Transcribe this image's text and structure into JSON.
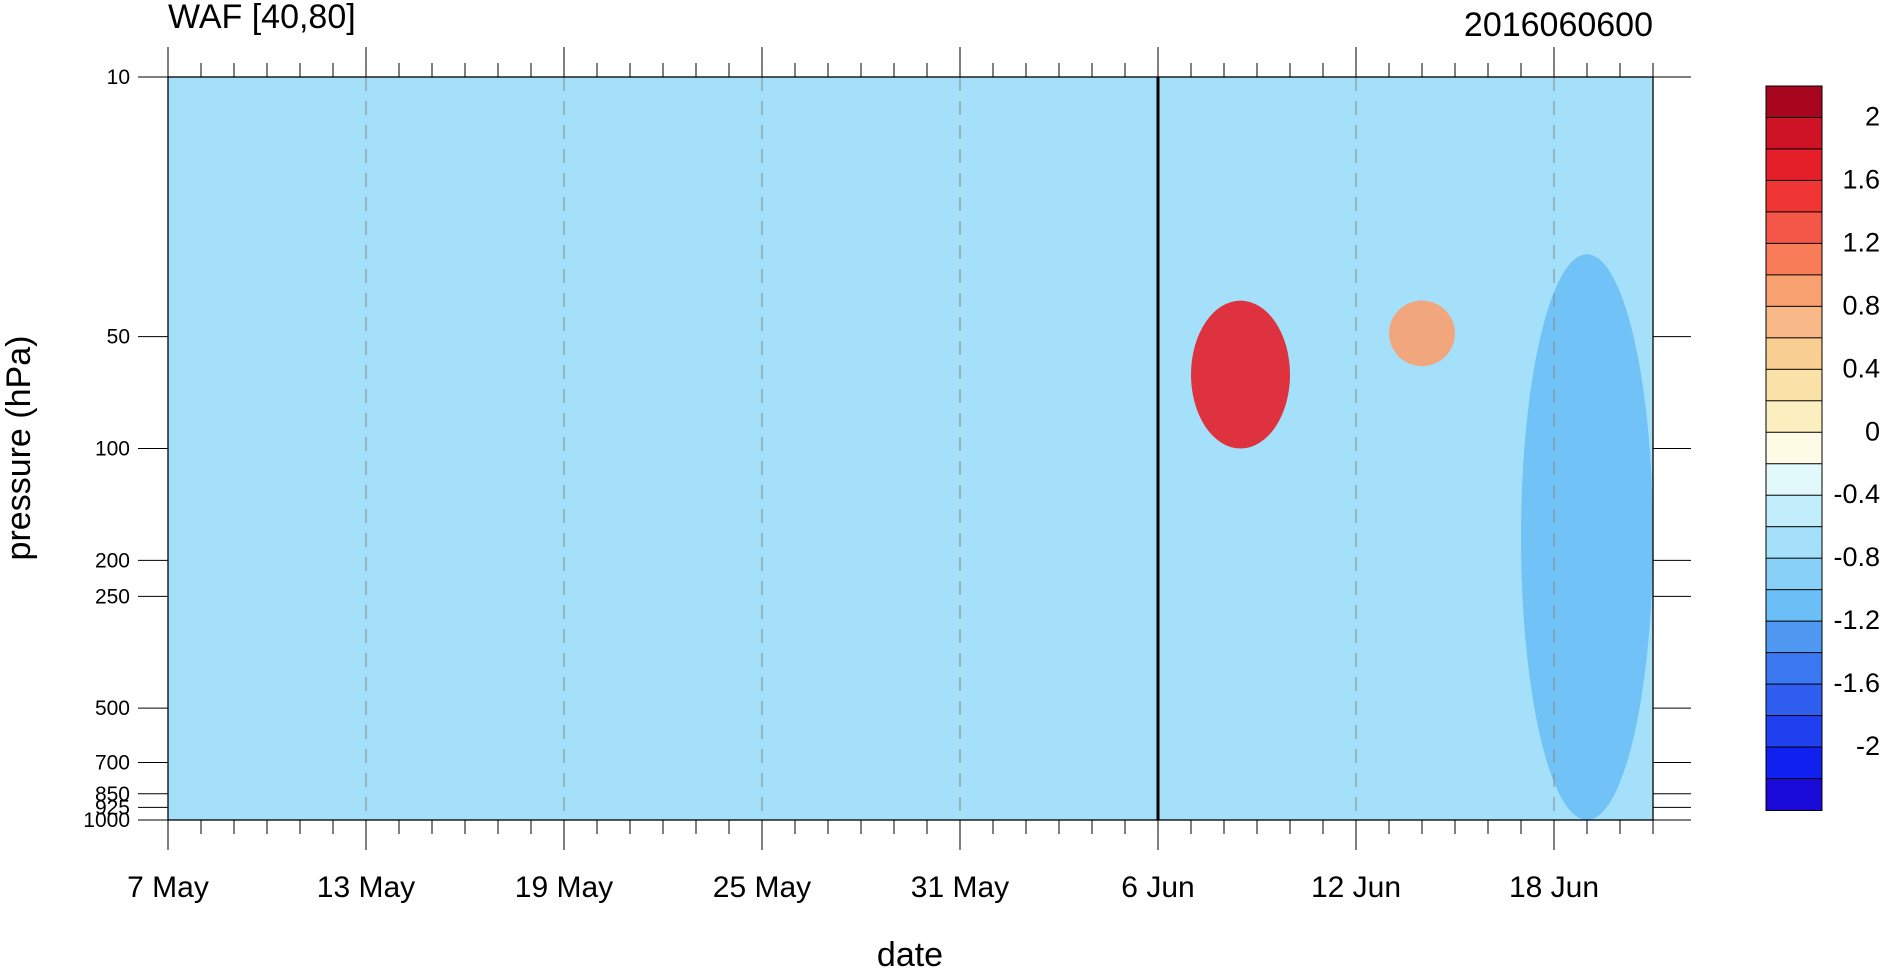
{
  "chart_data": {
    "type": "heatmap",
    "title_left": "WAF [40,80]",
    "title_right": "2016060600",
    "xlabel": "date",
    "ylabel": "pressure (hPa)",
    "x_ticklabels": [
      {
        "date": "2016-05-07",
        "label": "7 May"
      },
      {
        "date": "2016-05-13",
        "label": "13 May"
      },
      {
        "date": "2016-05-19",
        "label": "19 May"
      },
      {
        "date": "2016-05-25",
        "label": "25 May"
      },
      {
        "date": "2016-05-31",
        "label": "31 May"
      },
      {
        "date": "2016-06-06",
        "label": "6 Jun"
      },
      {
        "date": "2016-06-12",
        "label": "12 Jun"
      },
      {
        "date": "2016-06-18",
        "label": "18 Jun"
      }
    ],
    "x_range": [
      "2016-05-07",
      "2016-06-21"
    ],
    "y_scale": "log",
    "y_range": [
      1000,
      10
    ],
    "y_ticks": [
      10,
      50,
      100,
      200,
      250,
      500,
      700,
      850,
      925,
      1000
    ],
    "y_ticklabels": [
      "10",
      "50",
      "100",
      "200",
      "250",
      "500",
      "700",
      "850",
      "925",
      "1000"
    ],
    "vertical_line_date": "2016-06-06",
    "colorbar": {
      "levels": [
        -2.2,
        -2.0,
        -1.8,
        -1.6,
        -1.4,
        -1.2,
        -1.0,
        -0.8,
        -0.6,
        -0.4,
        -0.2,
        0.0,
        0.2,
        0.4,
        0.6,
        0.8,
        1.0,
        1.2,
        1.4,
        1.6,
        1.8,
        2.0,
        2.2
      ],
      "labels": [
        "2",
        "1.6",
        "1.2",
        "0.8",
        "0.4",
        "0",
        "-0.4",
        "-0.8",
        "-1.2",
        "-1.6",
        "-2"
      ],
      "colors": [
        "#1a0ad8",
        "#1020ee",
        "#2040f0",
        "#2f5ef0",
        "#3a78f2",
        "#4f99f2",
        "#6cbff6",
        "#88d0f7",
        "#a4e0f9",
        "#c2eefb",
        "#e2f9fb",
        "#fdfbe6",
        "#fbefc0",
        "#fae1a8",
        "#f8ce92",
        "#f8b888",
        "#f9a070",
        "#f87c58",
        "#f45648",
        "#ef3634",
        "#e41f2a",
        "#cf1326",
        "#a8061e"
      ]
    },
    "regions": [
      {
        "value": -0.5,
        "date_range": [
          "2016-05-07",
          "2016-05-18"
        ],
        "p_range": [
          150,
          10
        ]
      },
      {
        "value": 1.9,
        "date_range": [
          "2016-06-07",
          "2016-06-10"
        ],
        "p_range": [
          100,
          40
        ]
      },
      {
        "value": 1.0,
        "date_range": [
          "2016-06-13",
          "2016-06-15"
        ],
        "p_range": [
          60,
          40
        ]
      },
      {
        "value": -1.0,
        "date_range": [
          "2016-06-17",
          "2016-06-21"
        ],
        "p_range": [
          1000,
          30
        ]
      }
    ]
  }
}
